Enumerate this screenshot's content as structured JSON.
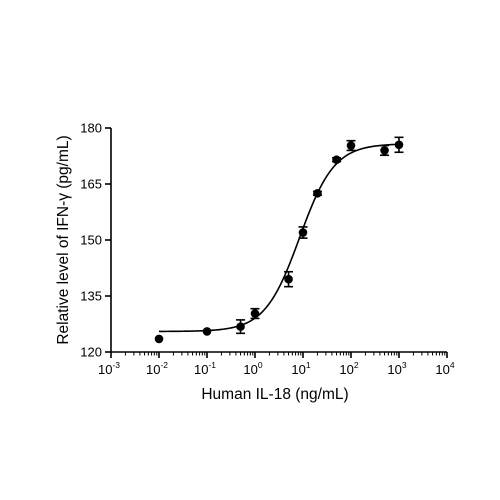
{
  "chart_data": {
    "type": "scatter",
    "title": "",
    "xlabel": "Human IL-18 (ng/mL)",
    "ylabel": "Relative level of IFN-γ (pg/mL)",
    "x_scale": "log10",
    "xlim": [
      0.001,
      10000
    ],
    "ylim": [
      120,
      180
    ],
    "x_ticks": [
      {
        "base": "10",
        "exp": "-3"
      },
      {
        "base": "10",
        "exp": "-2"
      },
      {
        "base": "10",
        "exp": "-1"
      },
      {
        "base": "10",
        "exp": "0"
      },
      {
        "base": "10",
        "exp": "1"
      },
      {
        "base": "10",
        "exp": "2"
      },
      {
        "base": "10",
        "exp": "3"
      },
      {
        "base": "10",
        "exp": "4"
      }
    ],
    "y_ticks": [
      "120",
      "135",
      "150",
      "165",
      "180"
    ],
    "grid": false,
    "legend": "none",
    "marker_color": "#000000",
    "series": [
      {
        "x": [
          0.01,
          0.1,
          0.5,
          1,
          5,
          10,
          20,
          50,
          100,
          500,
          1000
        ],
        "y": [
          123.5,
          125.5,
          126.8,
          130.3,
          139.5,
          152.0,
          162.5,
          171.5,
          175.3,
          174.0,
          175.5
        ],
        "error": [
          0,
          0,
          1.8,
          1.3,
          2.0,
          1.5,
          0.5,
          0.5,
          1.3,
          1.3,
          2.0
        ]
      }
    ],
    "fit": {
      "model": "4PL",
      "bottom": 125.5,
      "top": 175.8,
      "ec50": 8.5,
      "hill": 1.2
    }
  }
}
